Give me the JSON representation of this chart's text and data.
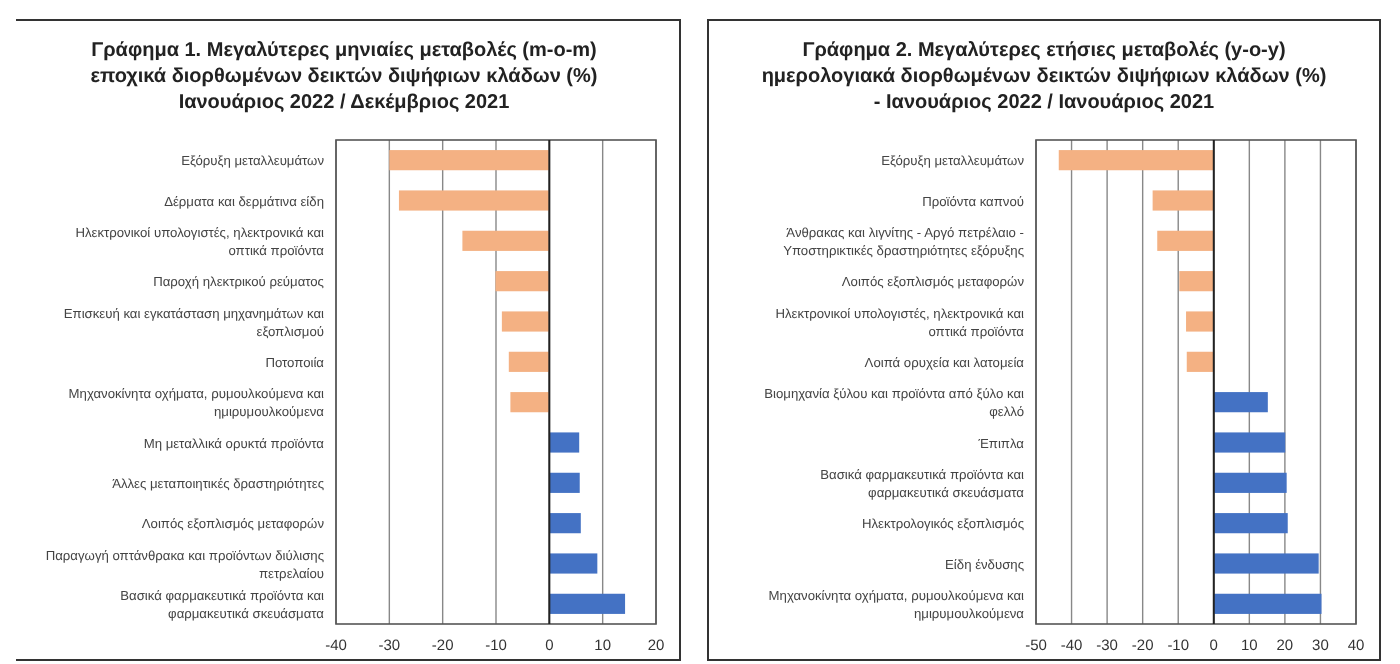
{
  "chart_data": [
    {
      "type": "bar",
      "orientation": "horizontal",
      "title": "Γράφημα 1. Μεγαλύτερες μηνιαίες μεταβολές (m-o-m) εποχικά διορθωμένων δεικτών διψήφιων κλάδων (%) Ιανουάριος 2022 / Δεκέμβριος 2021",
      "categories": [
        "Εξόρυξη μεταλλευμάτων",
        "Δέρματα και δερμάτινα είδη",
        "Ηλεκτρονικοί υπολογιστές, ηλεκτρονικά και οπτικά προϊόντα",
        "Παροχή ηλεκτρικού ρεύματος",
        "Επισκευή και εγκατάσταση μηχανημάτων και εξοπλισμού",
        "Ποτοποιία",
        "Μηχανοκίνητα οχήματα, ρυμουλκούμενα και ημιρυμουλκούμενα",
        "Μη μεταλλικά ορυκτά προϊόντα",
        "Άλλες μεταποιητικές δραστηριότητες",
        "Λοιπός εξοπλισμός μεταφορών",
        "Παραγωγή οπτάνθρακα και προϊόντων διύλισης πετρελαίου",
        "Βασικά φαρμακευτικά προϊόντα και φαρμακευτικά σκευάσματα"
      ],
      "values": [
        -30,
        -28.2,
        -16.3,
        -10.1,
        -8.9,
        -7.6,
        -7.3,
        5.6,
        5.7,
        5.9,
        9,
        14.2
      ],
      "colors": [
        "#f4b183",
        "#f4b183",
        "#f4b183",
        "#f4b183",
        "#f4b183",
        "#f4b183",
        "#f4b183",
        "#4472c4",
        "#4472c4",
        "#4472c4",
        "#4472c4",
        "#4472c4"
      ],
      "xlim": [
        -40,
        20
      ],
      "xticks": [
        -40,
        -30,
        -20,
        -10,
        0,
        10,
        20
      ],
      "grid": "x"
    },
    {
      "type": "bar",
      "orientation": "horizontal",
      "title": "Γράφημα 2. Μεγαλύτερες ετήσιες μεταβολές (y-o-y) ημερολογιακά διορθωμένων δεικτών διψήφιων κλάδων (%) - Ιανουάριος 2022 / Ιανουάριος 2021",
      "categories": [
        "Εξόρυξη μεταλλευμάτων",
        "Προϊόντα καπνού",
        "Άνθρακας και λιγνίτης - Αργό πετρέλαιο - Υποστηρικτικές δραστηριότητες εξόρυξης",
        "Λοιπός εξοπλισμός μεταφορών",
        "Ηλεκτρονικοί υπολογιστές, ηλεκτρονικά και οπτικά προϊόντα",
        "Λοιπά ορυχεία και λατομεία",
        "Βιομηχανία ξύλου και προϊόντα από ξύλο και φελλό",
        "Έπιπλα",
        "Βασικά φαρμακευτικά προϊόντα και φαρμακευτικά σκευάσματα",
        "Ηλεκτρολογικός εξοπλισμός",
        "Είδη ένδυσης",
        "Μηχανοκίνητα οχήματα, ρυμουλκούμενα και ημιρυμουλκούμενα"
      ],
      "values": [
        -43.6,
        -17.2,
        -15.9,
        -9.7,
        -7.8,
        -7.6,
        15.2,
        20.1,
        20.5,
        20.8,
        29.5,
        30.3
      ],
      "colors": [
        "#f4b183",
        "#f4b183",
        "#f4b183",
        "#f4b183",
        "#f4b183",
        "#f4b183",
        "#4472c4",
        "#4472c4",
        "#4472c4",
        "#4472c4",
        "#4472c4",
        "#4472c4"
      ],
      "xlim": [
        -50,
        40
      ],
      "xticks": [
        -50,
        -40,
        -30,
        -20,
        -10,
        0,
        10,
        20,
        30,
        40
      ],
      "grid": "x"
    }
  ]
}
